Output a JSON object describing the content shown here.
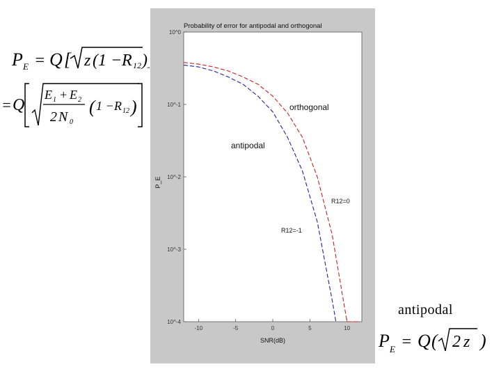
{
  "equations": {
    "general_line1": "P_E = Q[√(z(1 − R12))]",
    "general_line2": "= Q[√((E1 + E2)/(2N0)) (1 − R12)]",
    "antipodal": "P_E = Q(√(2z))"
  },
  "captions": {
    "antipodal": "antipodal"
  },
  "chart_data": {
    "type": "line",
    "title": "Probability of error for antipodal and orthogonal",
    "xlabel": "SNR(dB)",
    "ylabel": "P_E",
    "xlim": [
      -12,
      12
    ],
    "ylim_log10": [
      -4,
      0
    ],
    "yscale": "log",
    "grid": false,
    "xticks": [
      "-10",
      "-5",
      "0",
      "5",
      "10"
    ],
    "yticks": [
      "10^0",
      "10^-1",
      "10^-2",
      "10^-3",
      "10^-4"
    ],
    "series": [
      {
        "name": "orthogonal",
        "color": "#cc2020",
        "style": "dashed",
        "x": [
          -12,
          -10,
          -8,
          -6,
          -4,
          -2,
          0,
          2,
          4,
          6,
          8,
          10,
          11.5
        ],
        "y": [
          0.38,
          0.36,
          0.33,
          0.29,
          0.24,
          0.19,
          0.13,
          0.076,
          0.035,
          0.01,
          0.0016,
          9e-05,
          0.0001
        ]
      },
      {
        "name": "antipodal",
        "color": "#2020aa",
        "style": "dashed",
        "x": [
          -12,
          -10,
          -8,
          -6,
          -4,
          -2,
          0,
          2,
          4,
          6,
          8,
          8.5
        ],
        "y": [
          0.35,
          0.33,
          0.29,
          0.24,
          0.19,
          0.13,
          0.079,
          0.035,
          0.012,
          0.0024,
          0.0002,
          0.0001
        ]
      }
    ],
    "annotations": [
      {
        "text": "orthogonal",
        "color": "#000"
      },
      {
        "text": "antipodal",
        "color": "#000"
      },
      {
        "text": "R12=0",
        "color": "#333"
      },
      {
        "text": "R12=-1",
        "color": "#333"
      }
    ]
  }
}
